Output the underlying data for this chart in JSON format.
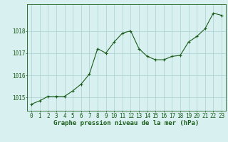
{
  "x": [
    0,
    1,
    2,
    3,
    4,
    5,
    6,
    7,
    8,
    9,
    10,
    11,
    12,
    13,
    14,
    15,
    16,
    17,
    18,
    19,
    20,
    21,
    22,
    23
  ],
  "y": [
    1014.7,
    1014.85,
    1015.05,
    1015.05,
    1015.05,
    1015.3,
    1015.6,
    1016.05,
    1017.2,
    1017.0,
    1017.5,
    1017.9,
    1018.0,
    1017.2,
    1016.85,
    1016.7,
    1016.7,
    1016.85,
    1016.9,
    1017.5,
    1017.75,
    1018.1,
    1018.8,
    1018.7
  ],
  "line_color": "#1a5c1a",
  "marker": "+",
  "marker_size": 3,
  "marker_color": "#1a5c1a",
  "bg_color": "#d8f0f0",
  "grid_color": "#aacfcf",
  "axis_color": "#1a5c1a",
  "tick_color": "#1a5c1a",
  "label_color": "#1a5c1a",
  "xlabel": "Graphe pression niveau de la mer (hPa)",
  "xlabel_fontsize": 6.5,
  "tick_fontsize": 5.5,
  "ylabel_ticks": [
    1015,
    1016,
    1017,
    1018
  ],
  "ylim": [
    1014.4,
    1019.2
  ],
  "xlim": [
    -0.5,
    23.5
  ]
}
